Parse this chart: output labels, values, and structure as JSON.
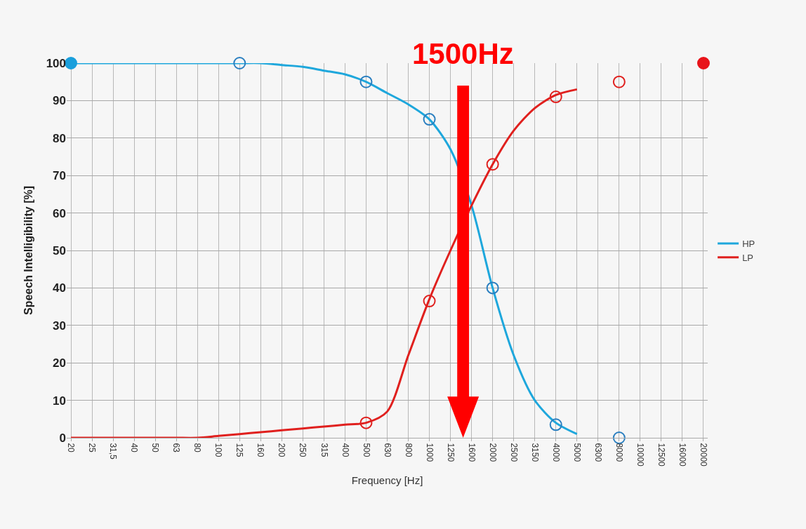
{
  "chart_data": {
    "type": "line",
    "xlabel": "Frequency [Hz]",
    "ylabel": "Speech Intelligibility [%]",
    "categories": [
      "20",
      "25",
      "31,5",
      "40",
      "50",
      "63",
      "80",
      "100",
      "125",
      "160",
      "200",
      "250",
      "315",
      "400",
      "500",
      "630",
      "800",
      "1000",
      "1250",
      "1600",
      "2000",
      "2500",
      "3150",
      "4000",
      "5000",
      "6300",
      "8000",
      "10000",
      "12500",
      "16000",
      "20000"
    ],
    "series": [
      {
        "name": "HP",
        "color": "#1ea7dc",
        "values": [
          100,
          100,
          100,
          100,
          100,
          100,
          100,
          100,
          100,
          100,
          99.5,
          99,
          98,
          97,
          95,
          92,
          89,
          85,
          77,
          62,
          40,
          22,
          10,
          4,
          1,
          null,
          null,
          null,
          null,
          null,
          null
        ]
      },
      {
        "name": "LP",
        "color": "#e0201e",
        "values": [
          0,
          0,
          0,
          0,
          0,
          0,
          0,
          0.5,
          1,
          1.5,
          2,
          2.5,
          3,
          3.5,
          4,
          7,
          22,
          37,
          50,
          62,
          73,
          82,
          88,
          91.5,
          93,
          null,
          null,
          null,
          null,
          null,
          null
        ]
      },
      {
        "type": "scatter",
        "marker": "circle-open",
        "color": "#2a7fc0",
        "values": [
          null,
          null,
          null,
          null,
          null,
          null,
          null,
          null,
          100,
          null,
          null,
          null,
          null,
          null,
          95,
          null,
          null,
          85,
          null,
          null,
          40,
          null,
          null,
          3.5,
          null,
          null,
          0,
          null,
          null,
          null,
          null
        ]
      },
      {
        "type": "scatter",
        "marker": "circle-open",
        "color": "#e0201e",
        "values": [
          null,
          null,
          null,
          null,
          null,
          null,
          null,
          null,
          null,
          null,
          null,
          null,
          null,
          null,
          4,
          null,
          null,
          36.5,
          null,
          null,
          73,
          null,
          null,
          91,
          null,
          null,
          95,
          null,
          null,
          null,
          null
        ]
      },
      {
        "type": "scatter",
        "marker": "circle",
        "color": "#1a9fdc",
        "values": [
          100,
          null,
          null,
          null,
          null,
          null,
          null,
          null,
          null,
          null,
          null,
          null,
          null,
          null,
          null,
          null,
          null,
          null,
          null,
          null,
          null,
          null,
          null,
          null,
          null,
          null,
          null,
          null,
          null,
          null,
          null
        ]
      },
      {
        "type": "scatter",
        "marker": "circle",
        "color": "#e8141a",
        "values": [
          null,
          null,
          null,
          null,
          null,
          null,
          null,
          null,
          null,
          null,
          null,
          null,
          null,
          null,
          null,
          null,
          null,
          null,
          null,
          null,
          null,
          null,
          null,
          null,
          null,
          null,
          null,
          null,
          null,
          null,
          100
        ]
      }
    ],
    "ylim": [
      0,
      100
    ],
    "yticks": [
      0,
      10,
      20,
      30,
      40,
      50,
      60,
      70,
      80,
      90,
      100
    ],
    "grid": true,
    "legend": "right",
    "annotations": [
      "1500Hz"
    ]
  }
}
